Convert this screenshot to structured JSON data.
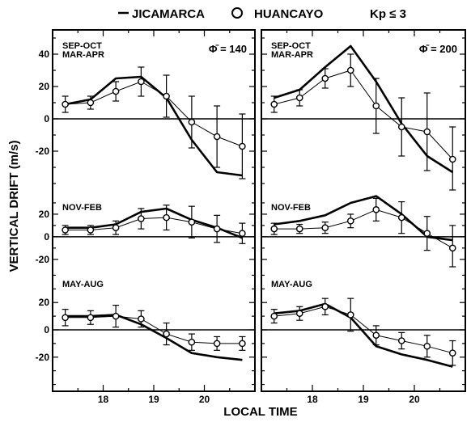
{
  "legend": {
    "line_label": "JICAMARCA",
    "circle_label": "HUANCAYO",
    "condition": "Kp ≤ 3"
  },
  "axes": {
    "ylabel": "VERTICAL DRIFT (m/s)",
    "xlabel": "LOCAL TIME"
  },
  "colors": {
    "ink": "#000000",
    "background": "#ffffff"
  },
  "chart_data": [
    {
      "type": "line",
      "panel": "left-top",
      "season": [
        "SEP-OCT",
        "MAR-APR"
      ],
      "flux_label": "Φ̄ = 140",
      "ylim": [
        -45,
        55
      ],
      "yticks": [
        40,
        20,
        0,
        -20
      ],
      "ytick_labels": [
        "40",
        "20",
        "0",
        "-20"
      ],
      "xlim": [
        17.0,
        21.0
      ],
      "xticks": [
        18,
        19,
        20
      ],
      "xtick_labels": [
        "18",
        "19",
        "20"
      ],
      "series": [
        {
          "name": "JICAMARCA",
          "style": "line",
          "x": [
            17.25,
            17.75,
            18.25,
            18.75,
            19.25,
            19.75,
            20.25,
            20.75
          ],
          "y": [
            9,
            12,
            25,
            26,
            13,
            -13,
            -33,
            -35
          ]
        },
        {
          "name": "HUANCAYO",
          "style": "circle",
          "x": [
            17.25,
            17.75,
            18.25,
            18.75,
            19.25,
            19.75,
            20.25,
            20.75
          ],
          "y": [
            9,
            10,
            17,
            23,
            14,
            -2,
            -11,
            -17
          ],
          "err": [
            5,
            4,
            6,
            9,
            13,
            16,
            19,
            20
          ]
        }
      ]
    },
    {
      "type": "line",
      "panel": "right-top",
      "season": [
        "SEP-OCT",
        "MAR-APR"
      ],
      "flux_label": "Φ̄ = 200",
      "ylim": [
        -45,
        55
      ],
      "yticks": [
        40,
        20,
        0,
        -20
      ],
      "ytick_labels": [
        "40",
        "20",
        "0",
        "-20"
      ],
      "xlim": [
        17.0,
        21.0
      ],
      "xticks": [
        18,
        19,
        20
      ],
      "xtick_labels": [
        "18",
        "19",
        "20"
      ],
      "series": [
        {
          "name": "JICAMARCA",
          "style": "line",
          "x": [
            17.25,
            17.75,
            18.25,
            18.75,
            19.25,
            19.75,
            20.25,
            20.75
          ],
          "y": [
            13,
            18,
            32,
            45,
            23,
            -3,
            -23,
            -33
          ]
        },
        {
          "name": "HUANCAYO",
          "style": "circle",
          "x": [
            17.25,
            17.75,
            18.25,
            18.75,
            19.25,
            19.75,
            20.25,
            20.75
          ],
          "y": [
            9,
            13,
            25,
            30,
            8,
            -5,
            -8,
            -25
          ],
          "err": [
            5,
            5,
            6,
            10,
            17,
            18,
            24,
            20
          ]
        }
      ]
    },
    {
      "type": "line",
      "panel": "left-middle",
      "season": [
        "NOV-FEB"
      ],
      "flux_label": "",
      "ylim": [
        -28,
        40
      ],
      "yticks": [
        20,
        0,
        -20
      ],
      "ytick_labels": [
        "20",
        "0",
        "-20"
      ],
      "xlim": [
        17.0,
        21.0
      ],
      "xticks": [
        18,
        19,
        20
      ],
      "xtick_labels": [
        "18",
        "19",
        "20"
      ],
      "series": [
        {
          "name": "JICAMARCA",
          "style": "line",
          "x": [
            17.25,
            17.75,
            18.25,
            18.75,
            19.25,
            19.75,
            20.25,
            20.75
          ],
          "y": [
            8,
            8,
            11,
            22,
            25,
            15,
            8,
            -1
          ]
        },
        {
          "name": "HUANCAYO",
          "style": "circle",
          "x": [
            17.25,
            17.75,
            18.25,
            18.75,
            19.25,
            19.75,
            20.25,
            20.75
          ],
          "y": [
            6,
            6,
            8,
            16,
            17,
            13,
            7,
            3
          ],
          "err": [
            4,
            4,
            6,
            9,
            11,
            14,
            12,
            9
          ]
        }
      ]
    },
    {
      "type": "line",
      "panel": "right-middle",
      "season": [
        "NOV-FEB"
      ],
      "flux_label": "",
      "ylim": [
        -28,
        40
      ],
      "yticks": [
        20,
        0,
        -20
      ],
      "ytick_labels": [
        "20",
        "0",
        "-20"
      ],
      "xlim": [
        17.0,
        21.0
      ],
      "xticks": [
        18,
        19,
        20
      ],
      "xtick_labels": [
        "18",
        "19",
        "20"
      ],
      "series": [
        {
          "name": "JICAMARCA",
          "style": "line",
          "x": [
            17.25,
            17.75,
            18.25,
            18.75,
            19.25,
            19.75,
            20.25,
            20.75
          ],
          "y": [
            11,
            14,
            19,
            30,
            36,
            20,
            0,
            -3
          ]
        },
        {
          "name": "HUANCAYO",
          "style": "circle",
          "x": [
            17.25,
            17.75,
            18.25,
            18.75,
            19.25,
            19.75,
            20.25,
            20.75
          ],
          "y": [
            7,
            7,
            8,
            14,
            24,
            17,
            3,
            -10
          ],
          "err": [
            5,
            4,
            5,
            6,
            10,
            14,
            15,
            20
          ]
        }
      ]
    },
    {
      "type": "line",
      "panel": "left-bottom",
      "season": [
        "MAY-AUG"
      ],
      "flux_label": "",
      "ylim": [
        -45,
        45
      ],
      "yticks": [
        20,
        0,
        -20
      ],
      "ytick_labels": [
        "20",
        "0",
        "-20"
      ],
      "xlim": [
        17.0,
        21.0
      ],
      "xticks": [
        18,
        19,
        20
      ],
      "xtick_labels": [
        "18",
        "19",
        "20"
      ],
      "series": [
        {
          "name": "JICAMARCA",
          "style": "line",
          "x": [
            17.25,
            17.75,
            18.25,
            18.75,
            19.25,
            19.75,
            20.25,
            20.75
          ],
          "y": [
            10,
            10,
            11,
            4,
            -6,
            -17,
            -20,
            -22
          ]
        },
        {
          "name": "HUANCAYO",
          "style": "circle",
          "x": [
            17.25,
            17.75,
            18.25,
            18.75,
            19.25,
            19.75,
            20.25,
            20.75
          ],
          "y": [
            9,
            9,
            10,
            8,
            -3,
            -9,
            -10,
            -10
          ],
          "err": [
            6,
            5,
            8,
            6,
            8,
            6,
            5,
            5
          ]
        }
      ]
    },
    {
      "type": "line",
      "panel": "right-bottom",
      "season": [
        "MAY-AUG"
      ],
      "flux_label": "",
      "ylim": [
        -45,
        45
      ],
      "yticks": [
        20,
        0,
        -20
      ],
      "ytick_labels": [
        "20",
        "0",
        "-20"
      ],
      "xlim": [
        17.0,
        21.0
      ],
      "xticks": [
        18,
        19,
        20
      ],
      "xtick_labels": [
        "18",
        "19",
        "20"
      ],
      "series": [
        {
          "name": "JICAMARCA",
          "style": "line",
          "x": [
            17.25,
            17.75,
            18.25,
            18.75,
            19.25,
            19.75,
            20.25,
            20.75
          ],
          "y": [
            12,
            14,
            19,
            9,
            -12,
            -18,
            -22,
            -27
          ]
        },
        {
          "name": "HUANCAYO",
          "style": "circle",
          "x": [
            17.25,
            17.75,
            18.25,
            18.75,
            19.25,
            19.75,
            20.25,
            20.75
          ],
          "y": [
            10,
            12,
            17,
            11,
            -4,
            -8,
            -12,
            -17
          ],
          "err": [
            5,
            5,
            6,
            12,
            7,
            6,
            8,
            9
          ]
        }
      ]
    }
  ]
}
